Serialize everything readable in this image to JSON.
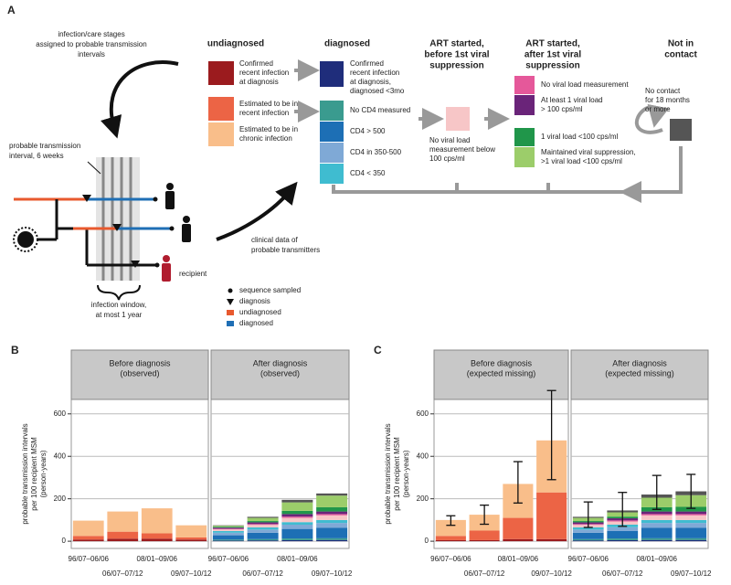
{
  "diagram": {
    "label": "A",
    "note": [
      "infection/care stages",
      "assigned to probable transmission",
      "intervals"
    ],
    "tree_interval": [
      "probable transmission",
      "interval, 6 weeks"
    ],
    "recipient": "recipient",
    "window": [
      "infection window,",
      "at most 1 year"
    ],
    "clinical": [
      "clinical data of",
      "probable transmitters"
    ],
    "legend": [
      "sequence sampled",
      "diagnosis",
      "undiagnosed",
      "diagnosed"
    ],
    "undiagnosed": {
      "title": [
        "undiagnosed"
      ],
      "items": [
        [
          "Confirmed",
          "recent infection",
          "at diagnosis"
        ],
        [
          "Estimated to be in",
          "recent infection"
        ],
        [
          "Estimated to be in",
          "chronic infection"
        ]
      ]
    },
    "diagnosed": {
      "title": [
        "diagnosed"
      ],
      "items": [
        [
          "Confirmed",
          "recent infection",
          "at diagnosis,",
          "diagnosed <3mo"
        ],
        [
          "No CD4 measured"
        ],
        [
          "CD4 > 500"
        ],
        [
          "CD4 in 350-500"
        ],
        [
          "CD4 < 350"
        ]
      ]
    },
    "art_before": {
      "title": [
        "ART started,",
        "before 1st viral",
        "suppression"
      ],
      "items": [
        [
          "No viral load",
          "measurement below",
          "100 cps/ml"
        ]
      ]
    },
    "art_after": {
      "title": [
        "ART started,",
        "after 1st viral",
        "suppression"
      ],
      "items": [
        [
          "No viral load measurement"
        ],
        [
          "At least 1 viral load",
          "> 100 cps/ml"
        ],
        [
          "1 viral load <100 cps/ml"
        ],
        [
          "Maintained viral suppression,",
          ">1 viral load <100 cps/ml"
        ]
      ]
    },
    "no_contact": {
      "title": [
        "Not in",
        "contact"
      ],
      "items": [
        [
          "No contact",
          "for 18 months",
          "or more"
        ]
      ]
    }
  },
  "chart_data": [
    {
      "type": "bar",
      "stacked": true,
      "panel": "B",
      "title": [
        "Before diagnosis",
        "(observed)"
      ],
      "ylabel": [
        "probable transmission intervals",
        "per 100 recipient MSM",
        "(person-years)"
      ],
      "categories": [
        "96/07–06/06",
        "06/07–07/12",
        "08/01–09/06",
        "09/07–10/12"
      ],
      "ylim": [
        -34,
        668
      ],
      "yticks": [
        0,
        200,
        400,
        600
      ],
      "grid": true,
      "series": [
        {
          "color": "#9b1b1e",
          "values": [
            8,
            12,
            12,
            8
          ]
        },
        {
          "color": "#ec6445",
          "values": [
            17,
            33,
            25,
            10
          ]
        },
        {
          "color": "#f9be8a",
          "values": [
            72,
            95,
            118,
            57
          ]
        }
      ]
    },
    {
      "type": "bar",
      "stacked": true,
      "title": [
        "After diagnosis",
        "(observed)"
      ],
      "categories": [
        "96/07–06/06",
        "06/07–07/12",
        "08/01–09/06",
        "09/07–10/12"
      ],
      "ylim": [
        -34,
        668
      ],
      "yticks": [
        0,
        200,
        400,
        600
      ],
      "grid": true,
      "series": [
        {
          "color": "#1f2d7b",
          "values": [
            3,
            4,
            5,
            6
          ]
        },
        {
          "color": "#3a9b8f",
          "values": [
            5,
            6,
            8,
            8
          ]
        },
        {
          "color": "#1d6fb5",
          "values": [
            20,
            30,
            45,
            50
          ]
        },
        {
          "color": "#7fa9d6",
          "values": [
            12,
            15,
            20,
            22
          ]
        },
        {
          "color": "#3fbcd0",
          "values": [
            8,
            10,
            12,
            14
          ]
        },
        {
          "color": "#f7c6c7",
          "values": [
            8,
            12,
            20,
            22
          ]
        },
        {
          "color": "#e5589a",
          "values": [
            3,
            4,
            6,
            6
          ]
        },
        {
          "color": "#6a2479",
          "values": [
            5,
            8,
            12,
            12
          ]
        },
        {
          "color": "#20964a",
          "values": [
            4,
            6,
            15,
            20
          ]
        },
        {
          "color": "#9ccd6a",
          "values": [
            5,
            15,
            40,
            55
          ]
        },
        {
          "color": "#555555",
          "values": [
            2,
            5,
            12,
            10
          ]
        }
      ]
    },
    {
      "type": "bar",
      "stacked": true,
      "panel": "C",
      "title": [
        "Before diagnosis",
        "(expected missing)"
      ],
      "ylabel": [
        "probable transmission intervals",
        "per 100 recipient MSM",
        "(person-years)"
      ],
      "categories": [
        "96/07–06/06",
        "06/07–07/12",
        "08/01–09/06",
        "09/07–10/12"
      ],
      "ylim": [
        -34,
        668
      ],
      "yticks": [
        0,
        200,
        400,
        600
      ],
      "grid": true,
      "series": [
        {
          "color": "#9b1b1e",
          "values": [
            5,
            5,
            10,
            10
          ]
        },
        {
          "color": "#ec6445",
          "values": [
            20,
            45,
            100,
            220
          ]
        },
        {
          "color": "#f9be8a",
          "values": [
            75,
            75,
            160,
            245
          ]
        }
      ],
      "error_low": [
        75,
        80,
        180,
        290
      ],
      "error_high": [
        120,
        170,
        375,
        710
      ]
    },
    {
      "type": "bar",
      "stacked": true,
      "title": [
        "After diagnosis",
        "(expected missing)"
      ],
      "categories": [
        "96/07–06/06",
        "06/07–07/12",
        "08/01–09/06",
        "09/07–10/12"
      ],
      "ylim": [
        -34,
        668
      ],
      "yticks": [
        0,
        200,
        400,
        600
      ],
      "grid": true,
      "series": [
        {
          "color": "#1f2d7b",
          "values": [
            4,
            5,
            6,
            6
          ]
        },
        {
          "color": "#3a9b8f",
          "values": [
            6,
            8,
            8,
            8
          ]
        },
        {
          "color": "#1d6fb5",
          "values": [
            30,
            35,
            50,
            50
          ]
        },
        {
          "color": "#7fa9d6",
          "values": [
            15,
            18,
            22,
            22
          ]
        },
        {
          "color": "#3fbcd0",
          "values": [
            10,
            12,
            14,
            14
          ]
        },
        {
          "color": "#f7c6c7",
          "values": [
            12,
            15,
            22,
            22
          ]
        },
        {
          "color": "#e5589a",
          "values": [
            4,
            5,
            6,
            6
          ]
        },
        {
          "color": "#6a2479",
          "values": [
            8,
            10,
            12,
            12
          ]
        },
        {
          "color": "#20964a",
          "values": [
            6,
            8,
            20,
            22
          ]
        },
        {
          "color": "#9ccd6a",
          "values": [
            15,
            20,
            45,
            55
          ]
        },
        {
          "color": "#555555",
          "values": [
            5,
            9,
            15,
            18
          ]
        }
      ],
      "error_low": [
        65,
        70,
        150,
        155
      ],
      "error_high": [
        185,
        230,
        310,
        315
      ]
    }
  ]
}
